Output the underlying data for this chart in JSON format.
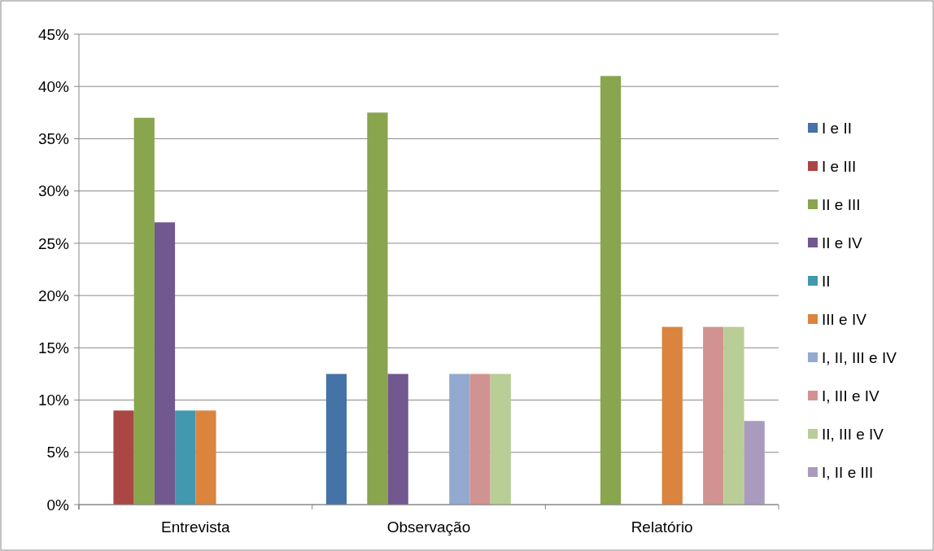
{
  "chart_data": {
    "type": "bar",
    "categories": [
      "Entrevista",
      "Observação",
      "Relatório"
    ],
    "series": [
      {
        "name": "I e II",
        "color": "#4572a7",
        "values": [
          null,
          12.5,
          null
        ]
      },
      {
        "name": "I e III",
        "color": "#aa4643",
        "values": [
          9,
          null,
          null
        ]
      },
      {
        "name": "II e III",
        "color": "#89a54e",
        "values": [
          37,
          37.5,
          41
        ]
      },
      {
        "name": "II e IV",
        "color": "#71588f",
        "values": [
          27,
          12.5,
          null
        ]
      },
      {
        "name": "II",
        "color": "#4198af",
        "values": [
          9,
          null,
          null
        ]
      },
      {
        "name": "III e IV",
        "color": "#db843d",
        "values": [
          9,
          null,
          17
        ]
      },
      {
        "name": "I, II, III e IV",
        "color": "#93a9cf",
        "values": [
          null,
          12.5,
          null
        ]
      },
      {
        "name": "I, III e IV",
        "color": "#d19392",
        "values": [
          null,
          12.5,
          17
        ]
      },
      {
        "name": "II, III e IV",
        "color": "#b9cd96",
        "values": [
          null,
          12.5,
          17
        ]
      },
      {
        "name": "I, II e III",
        "color": "#a99bbd",
        "values": [
          null,
          null,
          8
        ]
      }
    ],
    "ylim": [
      0,
      45
    ],
    "yticks": [
      {
        "value": 0,
        "label": "0%"
      },
      {
        "value": 5,
        "label": "5%"
      },
      {
        "value": 10,
        "label": "10%"
      },
      {
        "value": 15,
        "label": "15%"
      },
      {
        "value": 20,
        "label": "20%"
      },
      {
        "value": 25,
        "label": "25%"
      },
      {
        "value": 30,
        "label": "30%"
      },
      {
        "value": 35,
        "label": "35%"
      },
      {
        "value": 40,
        "label": "40%"
      },
      {
        "value": 45,
        "label": "45%"
      }
    ],
    "grid": "y",
    "legend": "right"
  }
}
